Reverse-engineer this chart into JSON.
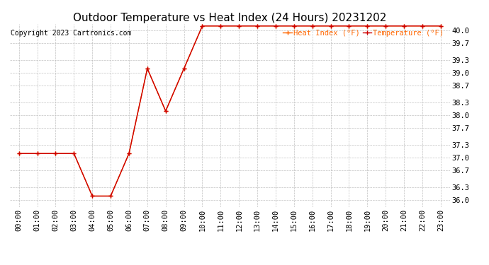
{
  "title": "Outdoor Temperature vs Heat Index (24 Hours) 20231202",
  "copyright_text": "Copyright 2023 Cartronics.com",
  "legend_heat_index": "Heat Index (°F)",
  "legend_temperature": "Temperature (°F)",
  "x_labels": [
    "00:00",
    "01:00",
    "02:00",
    "03:00",
    "04:00",
    "05:00",
    "06:00",
    "07:00",
    "08:00",
    "09:00",
    "10:00",
    "11:00",
    "12:00",
    "13:00",
    "14:00",
    "15:00",
    "16:00",
    "17:00",
    "18:00",
    "19:00",
    "20:00",
    "21:00",
    "22:00",
    "23:00"
  ],
  "y_ticks": [
    36.0,
    36.3,
    36.7,
    37.0,
    37.3,
    37.7,
    38.0,
    38.3,
    38.7,
    39.0,
    39.3,
    39.7,
    40.0
  ],
  "ylim": [
    35.85,
    40.15
  ],
  "temperature_values": [
    37.1,
    37.1,
    37.1,
    37.1,
    36.1,
    36.1,
    37.1,
    39.1,
    38.1,
    39.1,
    40.1,
    40.1,
    40.1,
    40.1,
    40.1,
    40.1,
    40.1,
    40.1,
    40.1,
    40.1,
    40.1,
    40.1,
    40.1,
    40.1
  ],
  "heat_index_values": [
    37.1,
    37.1,
    37.1,
    37.1,
    36.1,
    36.1,
    37.1,
    39.1,
    38.1,
    39.1,
    40.1,
    40.1,
    40.1,
    40.1,
    40.1,
    40.1,
    40.1,
    40.1,
    40.1,
    40.1,
    40.1,
    40.1,
    40.1,
    40.1
  ],
  "temp_color": "#cc0000",
  "heat_index_color": "#ff6600",
  "bg_color": "#ffffff",
  "grid_color": "#bbbbbb",
  "title_fontsize": 11,
  "tick_fontsize": 7.5,
  "copyright_fontsize": 7
}
